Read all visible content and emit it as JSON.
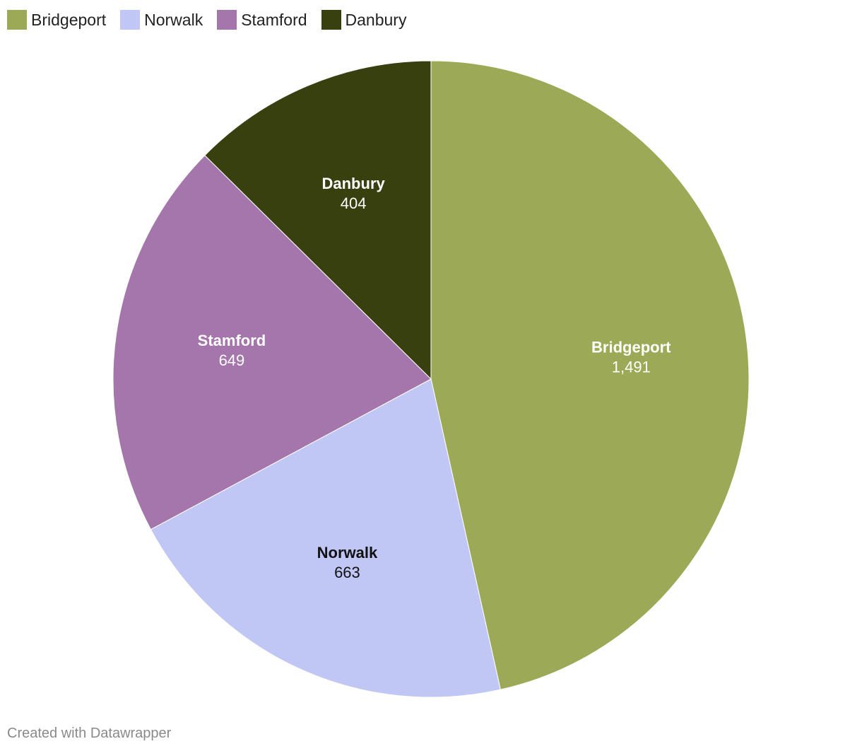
{
  "chart_data": {
    "type": "pie",
    "categories": [
      "Bridgeport",
      "Norwalk",
      "Stamford",
      "Danbury"
    ],
    "values": [
      1491,
      663,
      649,
      404
    ],
    "value_labels": [
      "1,491",
      "663",
      "649",
      "404"
    ],
    "colors": [
      "#9caa58",
      "#c0c7f5",
      "#a476ab",
      "#38400f"
    ],
    "label_colors": [
      "#ffffff",
      "#111111",
      "#ffffff",
      "#ffffff"
    ],
    "start_angle_deg": 0,
    "direction": "clockwise",
    "legend_position": "top-left"
  },
  "footer": {
    "credit": "Created with Datawrapper"
  }
}
